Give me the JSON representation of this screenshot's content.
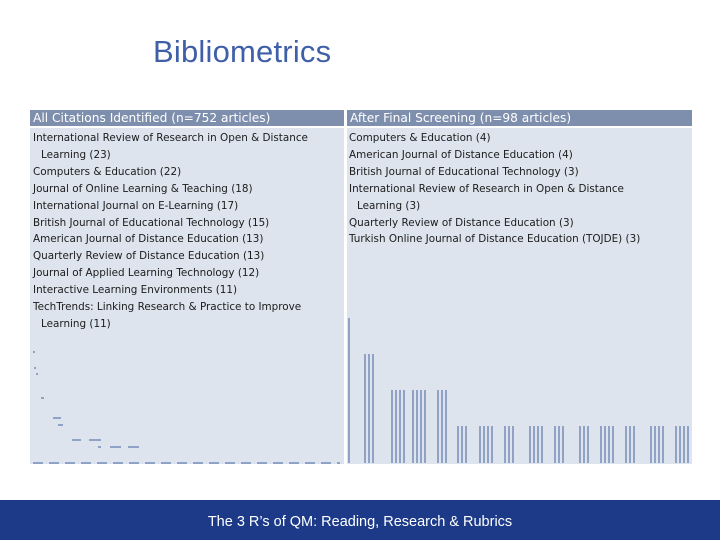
{
  "slide": {
    "title": "Bibliometrics",
    "footer": "The 3 R’s of QM: Reading, Research & Rubrics"
  },
  "table": {
    "left_header": "All Citations Identified   (n=752 articles)",
    "right_header": "After Final Screening  (n=98 articles)",
    "left_items": [
      {
        "line1": "International Review of Research in Open & Distance",
        "line2": "Learning (23)"
      },
      {
        "line1": "Computers & Education (22)",
        "line2": ""
      },
      {
        "line1": "Journal of Online Learning & Teaching (18)",
        "line2": ""
      },
      {
        "line1": "International Journal on E-Learning (17)",
        "line2": ""
      },
      {
        "line1": "British Journal of Educational Technology (15)",
        "line2": ""
      },
      {
        "line1": "American Journal of Distance Education (13)",
        "line2": ""
      },
      {
        "line1": "Quarterly Review of Distance Education (13)",
        "line2": ""
      },
      {
        "line1": "Journal of Applied Learning Technology (12)",
        "line2": ""
      },
      {
        "line1": "Interactive Learning Environments (11)",
        "line2": ""
      },
      {
        "line1": "TechTrends: Linking Research & Practice to Improve",
        "line2": "Learning (11)"
      }
    ],
    "right_items": [
      {
        "line1": "Computers & Education (4)",
        "line2": ""
      },
      {
        "line1": "American Journal of Distance Education (4)",
        "line2": ""
      },
      {
        "line1": "British Journal of Educational Technology (3)",
        "line2": ""
      },
      {
        "line1": "International Review of Research in Open & Distance",
        "line2": "Learning (3)"
      },
      {
        "line1": "Quarterly Review of Distance Education (3)",
        "line2": ""
      },
      {
        "line1": "Turkish Online Journal of Distance Education (TOJDE) (3)",
        "line2": ""
      }
    ]
  }
}
